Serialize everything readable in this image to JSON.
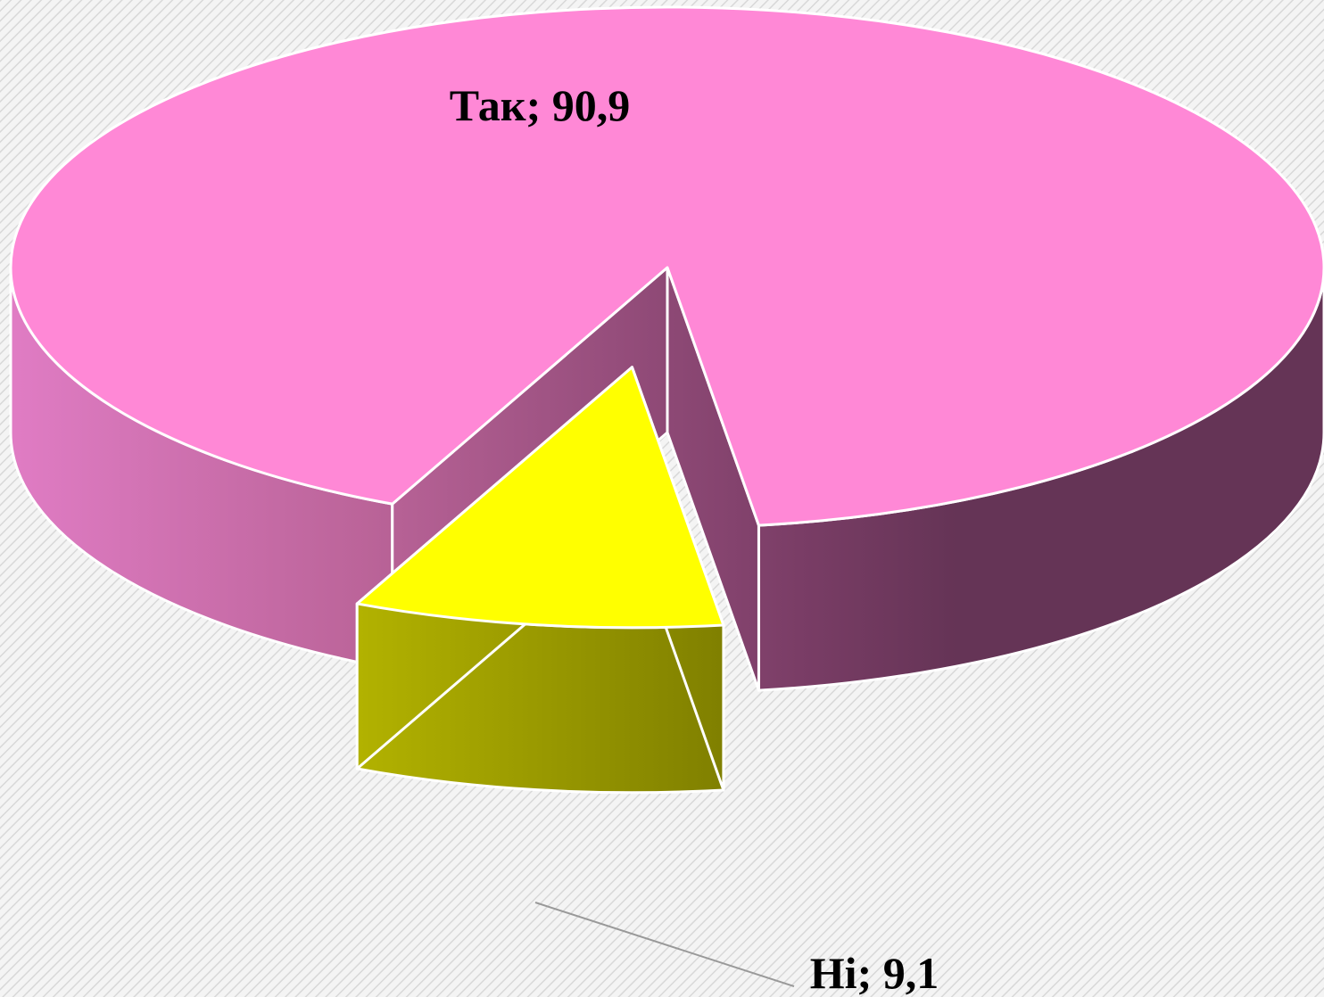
{
  "chart_data": {
    "type": "pie",
    "categories": [
      "Так",
      "Ні"
    ],
    "values": [
      90.9,
      9.1
    ],
    "value_labels": [
      "Так; 90,9",
      "Ні; 9,1"
    ],
    "colors": [
      "#ff88d6",
      "#ffff00"
    ]
  }
}
